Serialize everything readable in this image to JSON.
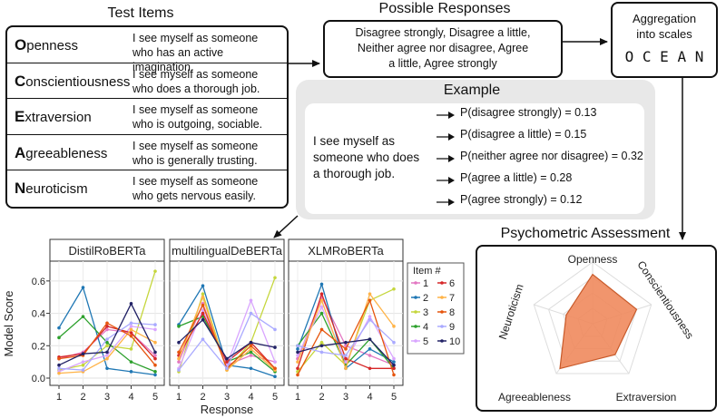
{
  "test_items": {
    "title": "Test Items",
    "rows": [
      {
        "initial": "O",
        "rest": "penness",
        "desc1": "I see myself as someone",
        "desc2": "who has an active imagination."
      },
      {
        "initial": "C",
        "rest": "onscientiousness",
        "desc1": "I see myself as someone",
        "desc2": "who does a thorough job."
      },
      {
        "initial": "E",
        "rest": "xtraversion",
        "desc1": "I see myself as someone",
        "desc2": "who is outgoing, sociable."
      },
      {
        "initial": "A",
        "rest": "greeableness",
        "desc1": "I see myself as someone",
        "desc2": "who is generally trusting."
      },
      {
        "initial": "N",
        "rest": "euroticism",
        "desc1": "I see myself as someone",
        "desc2": "who gets nervous easily."
      }
    ]
  },
  "possible_responses": {
    "title": "Possible Responses",
    "line1": "Disagree strongly, Disagree a little,",
    "line2": "Neither agree nor disagree, Agree",
    "line3": "a little, Agree strongly"
  },
  "aggregation": {
    "line1": "Aggregation",
    "line2": "into scales",
    "ocean": "O C E A N"
  },
  "example": {
    "title": "Example",
    "sentence1": "I see myself as",
    "sentence2": "someone who does",
    "sentence3": "a thorough job.",
    "probs": [
      "P(disagree strongly) = 0.13",
      "P(disagree a little) = 0.15",
      "P(neither agree nor disagree) = 0.32",
      "P(agree a little) = 0.28",
      "P(agree strongly) = 0.12"
    ]
  },
  "psychometric": {
    "title": "Psychometric Assessment",
    "axes": [
      "Openness",
      "Conscientiousness",
      "Extraversion",
      "Agreeableness",
      "Neuroticism"
    ]
  },
  "colors": {
    "accent": "#e8844f",
    "panel_bg": "#e8e8e8",
    "radar_fill": "#f08a5d"
  },
  "chart_data": [
    {
      "type": "line",
      "facets": [
        "DistilRoBERTa",
        "multilingualDeBERTa",
        "XLMRoBERTa"
      ],
      "x": [
        1,
        2,
        3,
        4,
        5
      ],
      "xlabel": "Response",
      "ylabel": "Model Score",
      "yticks": [
        "0.0",
        "0.2",
        "0.4",
        "0.6"
      ],
      "ylim": [
        0,
        0.7
      ],
      "legend_title": "Item #",
      "series_names": [
        "1",
        "2",
        "3",
        "4",
        "5",
        "6",
        "7",
        "8",
        "9",
        "10"
      ],
      "series_colors": [
        "#e377c2",
        "#1f77b4",
        "#c5d63c",
        "#2ca02c",
        "#d9a5ff",
        "#d62728",
        "#ffb347",
        "#e6550d",
        "#aaaaff",
        "#222266"
      ],
      "panels": [
        {
          "name": "DistilRoBERTa",
          "series": [
            [
              0.12,
              0.16,
              0.3,
              0.28,
              0.14
            ],
            [
              0.31,
              0.56,
              0.06,
              0.04,
              0.02
            ],
            [
              0.05,
              0.08,
              0.2,
              0.18,
              0.66
            ],
            [
              0.25,
              0.38,
              0.22,
              0.1,
              0.04
            ],
            [
              0.04,
              0.1,
              0.14,
              0.32,
              0.3
            ],
            [
              0.13,
              0.15,
              0.32,
              0.28,
              0.12
            ],
            [
              0.03,
              0.04,
              0.12,
              0.3,
              0.22
            ],
            [
              0.12,
              0.14,
              0.34,
              0.26,
              0.08
            ],
            [
              0.06,
              0.05,
              0.24,
              0.34,
              0.33
            ],
            [
              0.08,
              0.15,
              0.16,
              0.46,
              0.16
            ]
          ]
        },
        {
          "name": "multilingualDeBERTa",
          "series": [
            [
              0.1,
              0.46,
              0.08,
              0.14,
              0.1
            ],
            [
              0.33,
              0.57,
              0.08,
              0.06,
              0.01
            ],
            [
              0.04,
              0.52,
              0.05,
              0.22,
              0.62
            ],
            [
              0.32,
              0.38,
              0.1,
              0.16,
              0.04
            ],
            [
              0.06,
              0.42,
              0.08,
              0.48,
              0.1
            ],
            [
              0.14,
              0.4,
              0.1,
              0.22,
              0.06
            ],
            [
              0.12,
              0.5,
              0.05,
              0.18,
              0.05
            ],
            [
              0.16,
              0.45,
              0.06,
              0.2,
              0.06
            ],
            [
              0.05,
              0.24,
              0.06,
              0.4,
              0.3
            ],
            [
              0.22,
              0.36,
              0.12,
              0.22,
              0.19
            ]
          ]
        },
        {
          "name": "XLMRoBERTa",
          "series": [
            [
              0.12,
              0.5,
              0.2,
              0.14,
              0.08
            ],
            [
              0.18,
              0.58,
              0.06,
              0.18,
              0.1
            ],
            [
              0.04,
              0.22,
              0.08,
              0.48,
              0.55
            ],
            [
              0.2,
              0.4,
              0.08,
              0.24,
              0.06
            ],
            [
              0.14,
              0.44,
              0.1,
              0.38,
              0.12
            ],
            [
              0.06,
              0.52,
              0.12,
              0.06,
              0.06
            ],
            [
              0.1,
              0.48,
              0.06,
              0.52,
              0.32
            ],
            [
              0.02,
              0.3,
              0.18,
              0.48,
              0.02
            ],
            [
              0.2,
              0.16,
              0.14,
              0.36,
              0.22
            ],
            [
              0.16,
              0.2,
              0.22,
              0.24,
              0.08
            ]
          ]
        }
      ]
    },
    {
      "type": "radar",
      "axes": [
        "Openness",
        "Conscientiousness",
        "Extraversion",
        "Agreeableness",
        "Neuroticism"
      ],
      "values": [
        0.8,
        0.75,
        0.62,
        0.9,
        0.45
      ],
      "rlim": [
        0,
        1
      ]
    }
  ]
}
